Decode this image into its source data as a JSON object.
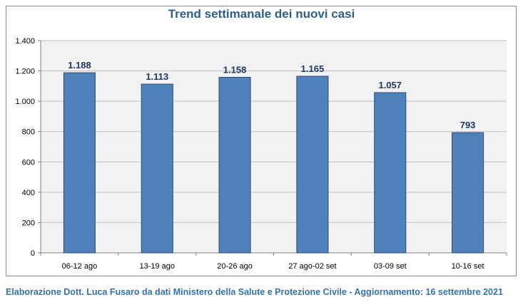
{
  "chart_data": {
    "type": "bar",
    "title": "Trend settimanale dei nuovi casi",
    "categories": [
      "06-12 ago",
      "13-19 ago",
      "20-26 ago",
      "27 ago-02 set",
      "03-09 set",
      "10-16 set"
    ],
    "values": [
      1188,
      1113,
      1158,
      1165,
      1057,
      793
    ],
    "value_labels": [
      "1.188",
      "1.113",
      "1.158",
      "1.165",
      "1.057",
      "793"
    ],
    "y_ticks": [
      0,
      200,
      400,
      600,
      800,
      1000,
      1200,
      1400
    ],
    "y_tick_labels": [
      "0",
      "200",
      "400",
      "600",
      "800",
      "1.000",
      "1.200",
      "1.400"
    ],
    "ylim": [
      0,
      1400
    ],
    "grid": true,
    "xlabel": "",
    "ylabel": "",
    "colors": {
      "bar_fill": "#4f81bd",
      "bar_stroke": "#2a4e78",
      "plot_background": "#f2f2f2",
      "grid": "#bfbfbf"
    }
  },
  "footer": {
    "note": "Elaborazione Dott. Luca Fusaro da dati Ministero della Salute e Protezione Civile - Aggiornamento: 16 settembre 2021"
  }
}
